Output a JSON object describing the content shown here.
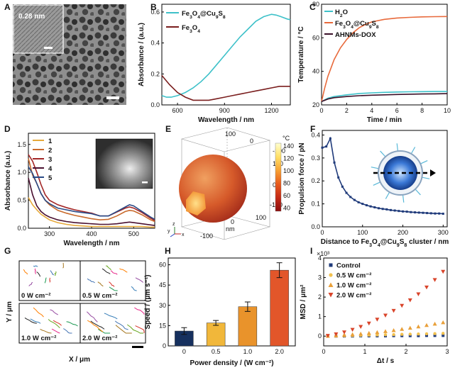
{
  "figure": {
    "panel_labels": [
      "A",
      "B",
      "C",
      "D",
      "E",
      "F",
      "G",
      "H",
      "I"
    ],
    "A": {
      "inset_scale_text": "0.28 nm"
    },
    "E": {
      "colorbar_unit": "°C",
      "colorbar_ticks": [
        "140",
        "120",
        "100",
        "80",
        "60",
        "40"
      ],
      "colorbar_colors": [
        "#ffffd0",
        "#ffe066",
        "#f7a133",
        "#e85a1c",
        "#c42a16",
        "#8b0d0d"
      ],
      "axis_ticks_top": [
        "100",
        "0",
        "-100"
      ],
      "axis_ticks_right": [
        "100",
        "0",
        "-100"
      ],
      "axis_ticks_bottom": [
        "-100",
        "0",
        "100"
      ],
      "axis_unit": "nm",
      "triad_labels": [
        "y",
        "z",
        "x"
      ]
    },
    "G": {
      "xlabel": "X / μm",
      "ylabel": "Y / μm",
      "subpanels": [
        "0 W cm⁻²",
        "0.5 W cm⁻²",
        "1.0 W cm⁻²",
        "2.0 W cm⁻²"
      ],
      "track_colors": [
        "#d73027",
        "#4575b4",
        "#1a9850",
        "#984ea3",
        "#ff7f00",
        "#a6761d",
        "#e7298a",
        "#66a61e",
        "#377eb8",
        "#222222"
      ]
    }
  },
  "chart_data": [
    {
      "panel": "B",
      "type": "line",
      "xlabel": "Wavelength / nm",
      "ylabel": "Absorbance / (a.u.)",
      "xlim": [
        500,
        1320
      ],
      "ylim": [
        0,
        0.65
      ],
      "xticks": [
        600,
        900,
        1200
      ],
      "yticks": [
        0.0,
        0.2,
        0.4,
        0.6
      ],
      "series": [
        {
          "name": "Fe3O4@Cu9S8",
          "color": "#3ec1c9",
          "x": [
            500,
            530,
            560,
            600,
            650,
            700,
            750,
            800,
            850,
            900,
            950,
            1000,
            1050,
            1100,
            1150,
            1200,
            1230,
            1260,
            1300,
            1320
          ],
          "y": [
            0.06,
            0.05,
            0.05,
            0.06,
            0.08,
            0.11,
            0.15,
            0.2,
            0.26,
            0.32,
            0.38,
            0.44,
            0.49,
            0.54,
            0.57,
            0.585,
            0.58,
            0.57,
            0.555,
            0.55
          ]
        },
        {
          "name": "Fe3O4",
          "color": "#7a1e1e",
          "x": [
            500,
            550,
            600,
            650,
            700,
            750,
            800,
            850,
            900,
            950,
            1000,
            1050,
            1100,
            1150,
            1200,
            1250,
            1300,
            1320
          ],
          "y": [
            0.19,
            0.13,
            0.08,
            0.05,
            0.03,
            0.03,
            0.03,
            0.04,
            0.05,
            0.06,
            0.07,
            0.08,
            0.09,
            0.1,
            0.11,
            0.12,
            0.12,
            0.12
          ]
        }
      ]
    },
    {
      "panel": "C",
      "type": "line",
      "xlabel": "Time / min",
      "ylabel": "Temperature / °C",
      "xlim": [
        0,
        10
      ],
      "ylim": [
        20,
        80
      ],
      "xticks": [
        0,
        2,
        4,
        6,
        8,
        10
      ],
      "yticks": [
        20,
        40,
        60,
        80
      ],
      "series": [
        {
          "name": "H2O",
          "color": "#3ec1c9",
          "x": [
            0,
            0.5,
            1,
            2,
            3,
            4,
            5,
            6,
            7,
            8,
            9,
            10
          ],
          "y": [
            22,
            24,
            25,
            26,
            26.8,
            27.2,
            27.5,
            27.7,
            27.8,
            27.9,
            28,
            28
          ]
        },
        {
          "name": "Fe3O4@Cu9S8",
          "color": "#e86a3c",
          "x": [
            0,
            0.25,
            0.5,
            1,
            1.5,
            2,
            2.5,
            3,
            3.5,
            4,
            5,
            6,
            7,
            8,
            9,
            10
          ],
          "y": [
            22,
            30,
            37,
            47,
            54,
            59,
            63,
            66,
            68,
            69.5,
            71,
            71.8,
            72.2,
            72.5,
            72.6,
            72.7
          ]
        },
        {
          "name": "AHNMs-DOX",
          "color": "#3a1028",
          "x": [
            0,
            0.5,
            1,
            2,
            3,
            4,
            5,
            6,
            7,
            8,
            9,
            10
          ],
          "y": [
            22,
            23.5,
            24.3,
            25,
            25.5,
            25.8,
            26,
            26.2,
            26.4,
            26.5,
            26.6,
            26.7
          ]
        }
      ]
    },
    {
      "panel": "D",
      "type": "line",
      "xlabel": "Wavelength / nm",
      "ylabel": "Absorbance (a.u.)",
      "xlim": [
        250,
        550
      ],
      "ylim": [
        0,
        1.7
      ],
      "xticks": [
        300,
        400,
        500
      ],
      "yticks": [
        0.0,
        0.5,
        1.0,
        1.5
      ],
      "x": [
        250,
        260,
        270,
        280,
        290,
        300,
        320,
        340,
        360,
        380,
        400,
        420,
        440,
        460,
        480,
        490,
        500,
        520,
        540,
        550
      ],
      "series": [
        {
          "name": "1",
          "color": "#e6a93a",
          "y": [
            0.55,
            0.42,
            0.33,
            0.25,
            0.2,
            0.15,
            0.1,
            0.07,
            0.05,
            0.04,
            0.03,
            0.03,
            0.03,
            0.03,
            0.03,
            0.03,
            0.03,
            0.03,
            0.02,
            0.02
          ]
        },
        {
          "name": "2",
          "color": "#c96a2c",
          "y": [
            1.25,
            0.95,
            0.8,
            0.62,
            0.5,
            0.42,
            0.32,
            0.27,
            0.23,
            0.2,
            0.17,
            0.15,
            0.16,
            0.22,
            0.3,
            0.32,
            0.31,
            0.24,
            0.15,
            0.12
          ]
        },
        {
          "name": "3",
          "color": "#a32626",
          "y": [
            1.32,
            1.2,
            1.0,
            0.78,
            0.6,
            0.5,
            0.42,
            0.37,
            0.33,
            0.3,
            0.27,
            0.22,
            0.22,
            0.29,
            0.36,
            0.38,
            0.36,
            0.28,
            0.18,
            0.14
          ]
        },
        {
          "name": "4",
          "color": "#4a1030",
          "y": [
            0.9,
            0.6,
            0.4,
            0.3,
            0.24,
            0.2,
            0.15,
            0.12,
            0.1,
            0.09,
            0.08,
            0.07,
            0.07,
            0.08,
            0.1,
            0.11,
            0.1,
            0.08,
            0.06,
            0.05
          ]
        },
        {
          "name": "5",
          "color": "#2a4a86",
          "y": [
            1.1,
            0.98,
            0.8,
            0.62,
            0.5,
            0.44,
            0.36,
            0.33,
            0.3,
            0.28,
            0.26,
            0.22,
            0.22,
            0.3,
            0.38,
            0.42,
            0.4,
            0.3,
            0.2,
            0.16
          ]
        }
      ]
    },
    {
      "panel": "F",
      "type": "line",
      "xlabel": "Distance to Fe3O4@Cu9S8 cluster / nm",
      "ylabel": "Propulsion force / pN",
      "xlim": [
        0,
        310
      ],
      "ylim": [
        0,
        0.42
      ],
      "xticks": [
        0,
        100,
        200,
        300
      ],
      "yticks": [
        0.0,
        0.1,
        0.2,
        0.3,
        0.4
      ],
      "series": [
        {
          "name": "force",
          "color": "#1f3a7a",
          "x": [
            0,
            10,
            20,
            30,
            40,
            50,
            60,
            70,
            80,
            90,
            100,
            110,
            120,
            130,
            140,
            150,
            160,
            170,
            180,
            190,
            200,
            210,
            220,
            230,
            240,
            250,
            260,
            270,
            280,
            290,
            300
          ],
          "y": [
            0.345,
            0.35,
            0.385,
            0.28,
            0.215,
            0.175,
            0.148,
            0.13,
            0.117,
            0.107,
            0.1,
            0.094,
            0.089,
            0.085,
            0.081,
            0.078,
            0.076,
            0.073,
            0.071,
            0.069,
            0.067,
            0.066,
            0.064,
            0.063,
            0.062,
            0.061,
            0.06,
            0.059,
            0.058,
            0.058,
            0.057
          ]
        }
      ]
    },
    {
      "panel": "H",
      "type": "bar",
      "xlabel": "Power density / (W cm⁻²)",
      "ylabel": "Speed / (μm s⁻¹)",
      "categories": [
        "0",
        "0.5",
        "1.0",
        "2.0"
      ],
      "values": [
        11,
        17,
        29,
        56
      ],
      "errors": [
        2.5,
        1.8,
        3.5,
        5.5
      ],
      "colors": [
        "#16305e",
        "#f1b73a",
        "#e9932b",
        "#e2562a"
      ],
      "ylim": [
        0,
        65
      ],
      "yticks": [
        0,
        15,
        30,
        45,
        60
      ]
    },
    {
      "panel": "I",
      "type": "scatter",
      "xlabel": "Δt / s",
      "ylabel": "MSD / μm²",
      "y_multiplier": "×10³",
      "xlim": [
        0,
        3
      ],
      "ylim": [
        -0.5,
        4
      ],
      "xticks": [
        0,
        1,
        2,
        3
      ],
      "yticks": [
        0,
        1,
        2,
        3,
        4
      ],
      "series": [
        {
          "name": "Control",
          "color": "#1f3a7a",
          "marker": "square",
          "x": [
            0.1,
            0.3,
            0.5,
            0.7,
            0.9,
            1.1,
            1.3,
            1.5,
            1.7,
            1.9,
            2.1,
            2.3,
            2.5,
            2.7,
            2.9
          ],
          "y": [
            0,
            0,
            0,
            0,
            0.01,
            0.01,
            0.01,
            0.01,
            0.02,
            0.02,
            0.02,
            0.02,
            0.03,
            0.03,
            0.03
          ]
        },
        {
          "name": "0.5 W cm⁻²",
          "color": "#f2c14e",
          "marker": "circle",
          "x": [
            0.1,
            0.3,
            0.5,
            0.7,
            0.9,
            1.1,
            1.3,
            1.5,
            1.7,
            1.9,
            2.1,
            2.3,
            2.5,
            2.7,
            2.9
          ],
          "y": [
            0,
            0.01,
            0.02,
            0.03,
            0.04,
            0.05,
            0.06,
            0.07,
            0.08,
            0.09,
            0.1,
            0.11,
            0.12,
            0.13,
            0.14
          ]
        },
        {
          "name": "1.0 W cm⁻²",
          "color": "#e9a03a",
          "marker": "triangle-up",
          "x": [
            0.1,
            0.3,
            0.5,
            0.7,
            0.9,
            1.1,
            1.3,
            1.5,
            1.7,
            1.9,
            2.1,
            2.3,
            2.5,
            2.7,
            2.9
          ],
          "y": [
            0.01,
            0.03,
            0.06,
            0.09,
            0.12,
            0.16,
            0.2,
            0.25,
            0.3,
            0.36,
            0.42,
            0.49,
            0.56,
            0.63,
            0.7
          ]
        },
        {
          "name": "2.0 W cm⁻²",
          "color": "#d9452b",
          "marker": "triangle-down",
          "x": [
            0.1,
            0.3,
            0.5,
            0.7,
            0.9,
            1.1,
            1.3,
            1.5,
            1.7,
            1.9,
            2.1,
            2.3,
            2.5,
            2.7,
            2.9
          ],
          "y": [
            0.02,
            0.1,
            0.2,
            0.33,
            0.48,
            0.65,
            0.85,
            1.06,
            1.3,
            1.56,
            1.84,
            2.15,
            2.5,
            2.88,
            3.3
          ]
        }
      ]
    }
  ]
}
